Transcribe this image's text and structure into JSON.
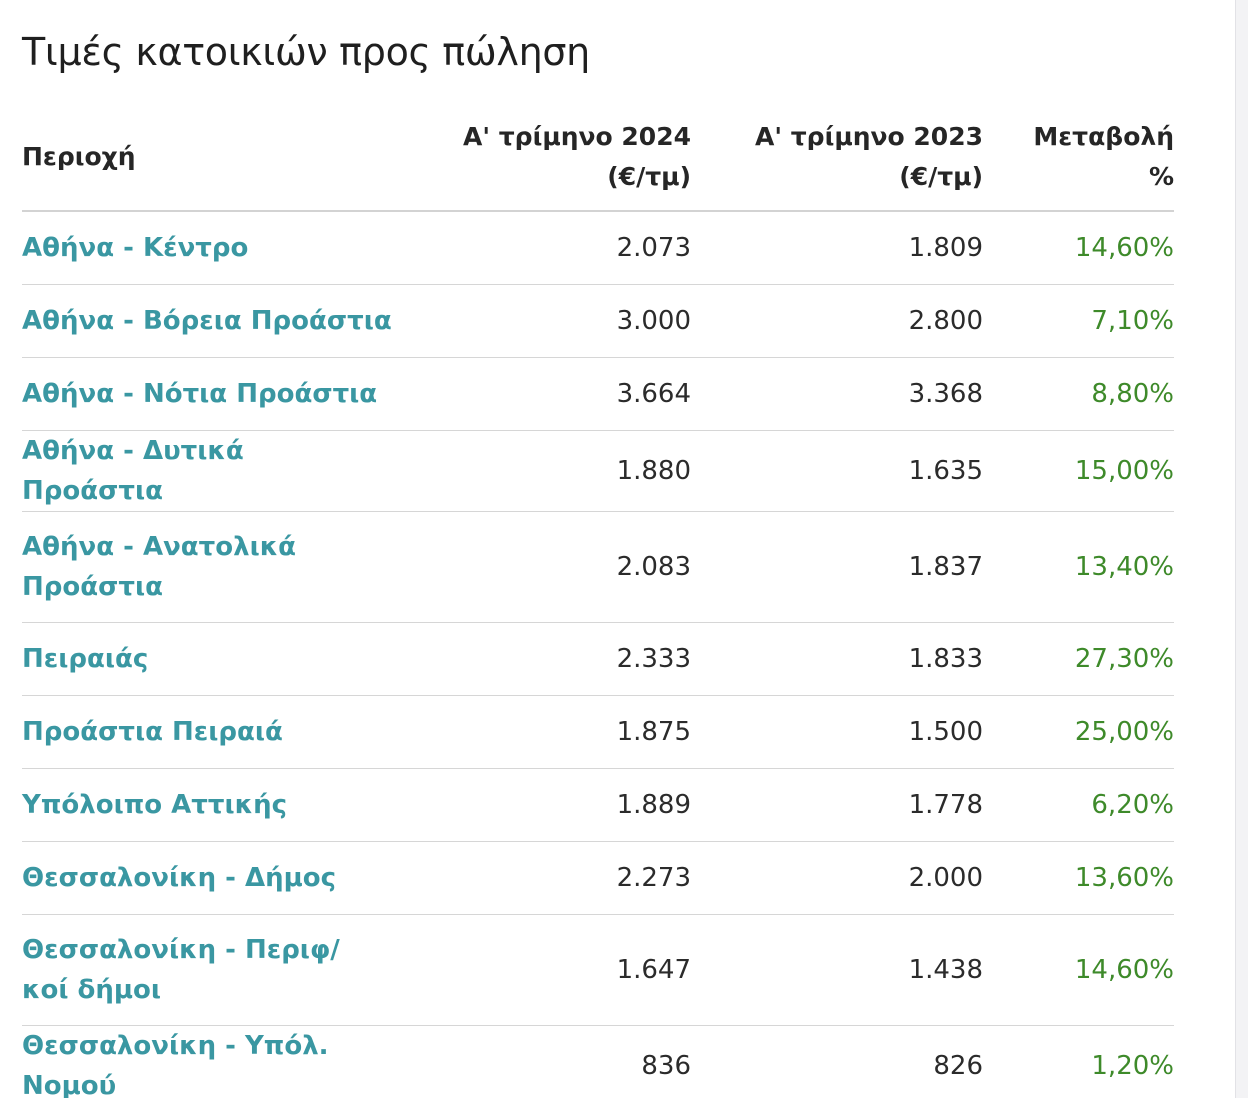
{
  "title": "Τιμές κατοικιών προς πώληση",
  "table": {
    "headers": {
      "region": "Περιοχή",
      "q1_2024_line1": "Α' τρίμηνο 2024",
      "q1_2024_line2": "(€/τμ)",
      "q1_2023_line1": "Α' τρίμηνο 2023",
      "q1_2023_line2": "(€/τμ)",
      "change_line1": "Μεταβολή",
      "change_line2": "%"
    },
    "rows": [
      {
        "region": "Αθήνα - Κέντρο",
        "q1_2024": "2.073",
        "q1_2023": "1.809",
        "change": "14,60%"
      },
      {
        "region": "Αθήνα - Βόρεια Προάστια",
        "q1_2024": "3.000",
        "q1_2023": "2.800",
        "change": "7,10%"
      },
      {
        "region": "Αθήνα - Νότια Προάστια",
        "q1_2024": "3.664",
        "q1_2023": "3.368",
        "change": "8,80%"
      },
      {
        "region": "Αθήνα - Δυτικά Προάστια",
        "q1_2024": "1.880",
        "q1_2023": "1.635",
        "change": "15,00%"
      },
      {
        "region": "Αθήνα - Ανατολικά Προάστια",
        "q1_2024": "2.083",
        "q1_2023": "1.837",
        "change": "13,40%"
      },
      {
        "region": "Πειραιάς",
        "q1_2024": "2.333",
        "q1_2023": "1.833",
        "change": "27,30%"
      },
      {
        "region": "Προάστια Πειραιά",
        "q1_2024": "1.875",
        "q1_2023": "1.500",
        "change": "25,00%"
      },
      {
        "region": "Υπόλοιπο Αττικής",
        "q1_2024": "1.889",
        "q1_2023": "1.778",
        "change": "6,20%"
      },
      {
        "region": "Θεσσαλονίκη - Δήμος",
        "q1_2024": "2.273",
        "q1_2023": "2.000",
        "change": "13,60%"
      },
      {
        "region": "Θεσσαλονίκη - Περιφ/κοί δήμοι",
        "q1_2024": "1.647",
        "q1_2023": "1.438",
        "change": "14,60%"
      },
      {
        "region": "Θεσσαλονίκη - Υπόλ. Νομού",
        "q1_2024": "836",
        "q1_2023": "826",
        "change": "1,20%"
      }
    ]
  },
  "colors": {
    "region_link": "#3a97a2",
    "positive_change": "#3e8a2a",
    "text": "#2b2b2b"
  }
}
